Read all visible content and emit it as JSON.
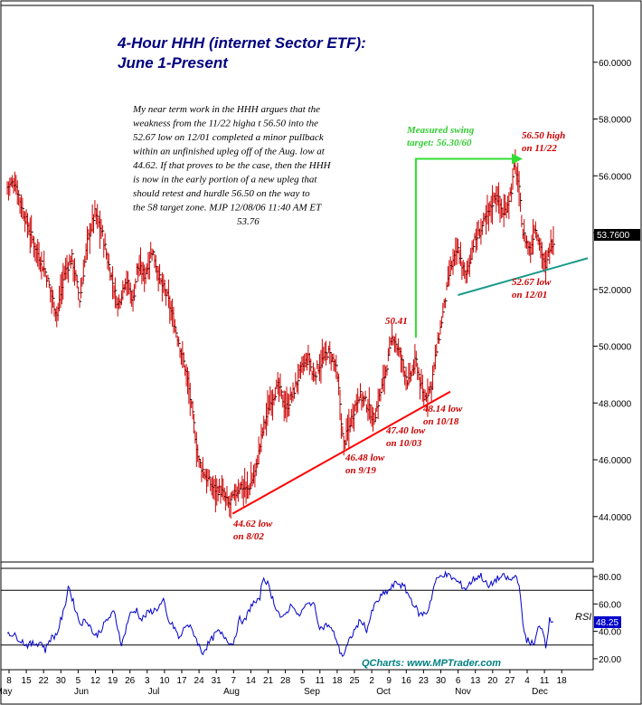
{
  "chart_data": [
    {
      "type": "ohlc",
      "title_line1": "4-Hour HHH (internet Sector ETF):",
      "title_line2": "June 1-Present",
      "ylim": [
        42.4,
        62.0
      ],
      "y_ticks": [
        "44.0000",
        "46.0000",
        "48.0000",
        "50.0000",
        "52.0000",
        "54.0000",
        "56.0000",
        "58.0000",
        "60.0000"
      ],
      "last_price_label": "53.7600",
      "note_lines": [
        "My near term work in the HHH argues that the",
        "weakness from the 11/22 higha t 56.50 into the",
        "52.67 low on 12/01 completed a minor pullback",
        "within an unfinished upleg off of the Aug. low at",
        "44.62. If that proves to be the case, then the HHH",
        "is now in the early portion of a new upleg that",
        "should retest and hurdle 56.50 on the way to",
        "the 58 target zone.  MJP  12/08/06  11:40 AM ET"
      ],
      "note_tail": "53.76",
      "annotations": [
        {
          "lines": [
            "Measured swing",
            "target: 56.30/60"
          ],
          "color": "#33cc33"
        },
        {
          "lines": [
            "56.50 high",
            "on 11/22"
          ],
          "color": "#cc0000"
        },
        {
          "lines": [
            "50.41"
          ],
          "color": "#cc0000"
        },
        {
          "lines": [
            "52.67 low",
            "on 12/01"
          ],
          "color": "#cc0000"
        },
        {
          "lines": [
            "48.14 low",
            "on 10/18"
          ],
          "color": "#cc0000"
        },
        {
          "lines": [
            "47.40 low",
            "on 10/03"
          ],
          "color": "#cc0000"
        },
        {
          "lines": [
            "46.48 low",
            "on 9/19"
          ],
          "color": "#cc0000"
        },
        {
          "lines": [
            "44.62 low",
            "on 8/02"
          ],
          "color": "#cc0000"
        }
      ],
      "key_points": [
        {
          "t": 0,
          "p": 55.6
        },
        {
          "t": 2,
          "p": 55.8
        },
        {
          "t": 4,
          "p": 54.8
        },
        {
          "t": 7,
          "p": 53.6
        },
        {
          "t": 10,
          "p": 52.6
        },
        {
          "t": 13,
          "p": 51.1
        },
        {
          "t": 15,
          "p": 52.6
        },
        {
          "t": 17,
          "p": 53.1
        },
        {
          "t": 19,
          "p": 51.6
        },
        {
          "t": 21,
          "p": 53.7
        },
        {
          "t": 23,
          "p": 54.7
        },
        {
          "t": 25,
          "p": 53.9
        },
        {
          "t": 26,
          "p": 53.2
        },
        {
          "t": 29,
          "p": 51.4
        },
        {
          "t": 31,
          "p": 52.4
        },
        {
          "t": 33,
          "p": 51.6
        },
        {
          "t": 34,
          "p": 52.8
        },
        {
          "t": 36,
          "p": 52.5
        },
        {
          "t": 38,
          "p": 53.4
        },
        {
          "t": 40,
          "p": 52.3
        },
        {
          "t": 42,
          "p": 51.7
        },
        {
          "t": 45,
          "p": 50.1
        },
        {
          "t": 47,
          "p": 49.0
        },
        {
          "t": 49,
          "p": 47.1
        },
        {
          "t": 50,
          "p": 46.0
        },
        {
          "t": 52,
          "p": 45.4
        },
        {
          "t": 54,
          "p": 45.0
        },
        {
          "t": 56,
          "p": 44.9
        },
        {
          "t": 58,
          "p": 44.4
        },
        {
          "t": 59,
          "p": 44.62
        },
        {
          "t": 61,
          "p": 45.1
        },
        {
          "t": 63,
          "p": 44.9
        },
        {
          "t": 65,
          "p": 45.6
        },
        {
          "t": 67,
          "p": 47.1
        },
        {
          "t": 69,
          "p": 48.1
        },
        {
          "t": 71,
          "p": 48.6
        },
        {
          "t": 73,
          "p": 47.8
        },
        {
          "t": 75,
          "p": 48.4
        },
        {
          "t": 77,
          "p": 49.2
        },
        {
          "t": 79,
          "p": 49.6
        },
        {
          "t": 80,
          "p": 48.9
        },
        {
          "t": 82,
          "p": 49.4
        },
        {
          "t": 84,
          "p": 49.8
        },
        {
          "t": 86,
          "p": 49.3
        },
        {
          "t": 87,
          "p": 48.2
        },
        {
          "t": 88,
          "p": 46.48
        },
        {
          "t": 90,
          "p": 47.4
        },
        {
          "t": 92,
          "p": 48.3
        },
        {
          "t": 94,
          "p": 48.0
        },
        {
          "t": 96,
          "p": 47.4
        },
        {
          "t": 98,
          "p": 48.5
        },
        {
          "t": 100,
          "p": 49.7
        },
        {
          "t": 101,
          "p": 50.41
        },
        {
          "t": 103,
          "p": 49.6
        },
        {
          "t": 105,
          "p": 48.7
        },
        {
          "t": 107,
          "p": 49.5
        },
        {
          "t": 109,
          "p": 48.14
        },
        {
          "t": 111,
          "p": 48.6
        },
        {
          "t": 112,
          "p": 49.5
        },
        {
          "t": 114,
          "p": 51.1
        },
        {
          "t": 116,
          "p": 52.7
        },
        {
          "t": 118,
          "p": 53.4
        },
        {
          "t": 120,
          "p": 52.4
        },
        {
          "t": 122,
          "p": 53.6
        },
        {
          "t": 124,
          "p": 54.1
        },
        {
          "t": 126,
          "p": 54.7
        },
        {
          "t": 128,
          "p": 55.4
        },
        {
          "t": 130,
          "p": 54.6
        },
        {
          "t": 132,
          "p": 55.5
        },
        {
          "t": 133,
          "p": 56.5
        },
        {
          "t": 134,
          "p": 55.5
        },
        {
          "t": 135,
          "p": 54.0
        },
        {
          "t": 137,
          "p": 53.3
        },
        {
          "t": 138,
          "p": 54.2
        },
        {
          "t": 139,
          "p": 53.9
        },
        {
          "t": 141,
          "p": 52.67
        },
        {
          "t": 142,
          "p": 53.5
        },
        {
          "t": 143,
          "p": 53.76
        }
      ],
      "trendlines": [
        {
          "from": {
            "t": 59,
            "p": 44.1
          },
          "to": {
            "t": 116,
            "p": 48.4
          },
          "color": "#ff0000"
        },
        {
          "from": {
            "t": 118,
            "p": 51.8
          },
          "to": {
            "t": 152,
            "p": 53.1
          },
          "color": "#1a9a8a"
        }
      ],
      "target_arrow": {
        "start": {
          "t": 107,
          "p": 50.3
        },
        "corner_p": 56.6,
        "end_t": 134,
        "color": "#33dd33"
      }
    },
    {
      "type": "line",
      "series_name": "RSI",
      "ylim": [
        12,
        86
      ],
      "y_ticks": [
        "20.00",
        "40.00",
        "60.00",
        "80.00"
      ],
      "ref_lines": [
        30,
        70
      ],
      "last_value_label": "48.25",
      "key_points": [
        {
          "t": 0,
          "v": 40
        },
        {
          "t": 3,
          "v": 35
        },
        {
          "t": 5,
          "v": 30
        },
        {
          "t": 7,
          "v": 31
        },
        {
          "t": 9,
          "v": 32
        },
        {
          "t": 10,
          "v": 26
        },
        {
          "t": 11,
          "v": 34
        },
        {
          "t": 13,
          "v": 38
        },
        {
          "t": 14,
          "v": 48
        },
        {
          "t": 15,
          "v": 56
        },
        {
          "t": 16,
          "v": 74
        },
        {
          "t": 17,
          "v": 64
        },
        {
          "t": 19,
          "v": 46
        },
        {
          "t": 21,
          "v": 48
        },
        {
          "t": 23,
          "v": 36
        },
        {
          "t": 25,
          "v": 43
        },
        {
          "t": 26,
          "v": 48
        },
        {
          "t": 28,
          "v": 54
        },
        {
          "t": 30,
          "v": 30
        },
        {
          "t": 32,
          "v": 52
        },
        {
          "t": 34,
          "v": 56
        },
        {
          "t": 35,
          "v": 48
        },
        {
          "t": 37,
          "v": 54
        },
        {
          "t": 39,
          "v": 56
        },
        {
          "t": 41,
          "v": 62
        },
        {
          "t": 42,
          "v": 48
        },
        {
          "t": 44,
          "v": 42
        },
        {
          "t": 45,
          "v": 34
        },
        {
          "t": 47,
          "v": 46
        },
        {
          "t": 49,
          "v": 38
        },
        {
          "t": 51,
          "v": 24
        },
        {
          "t": 53,
          "v": 32
        },
        {
          "t": 55,
          "v": 40
        },
        {
          "t": 57,
          "v": 36
        },
        {
          "t": 59,
          "v": 30
        },
        {
          "t": 61,
          "v": 50
        },
        {
          "t": 62,
          "v": 46
        },
        {
          "t": 64,
          "v": 60
        },
        {
          "t": 66,
          "v": 62
        },
        {
          "t": 67,
          "v": 80
        },
        {
          "t": 68,
          "v": 76
        },
        {
          "t": 70,
          "v": 60
        },
        {
          "t": 72,
          "v": 48
        },
        {
          "t": 74,
          "v": 58
        },
        {
          "t": 75,
          "v": 60
        },
        {
          "t": 76,
          "v": 50
        },
        {
          "t": 78,
          "v": 58
        },
        {
          "t": 80,
          "v": 62
        },
        {
          "t": 82,
          "v": 42
        },
        {
          "t": 84,
          "v": 45
        },
        {
          "t": 86,
          "v": 36
        },
        {
          "t": 87,
          "v": 26
        },
        {
          "t": 88,
          "v": 22
        },
        {
          "t": 90,
          "v": 36
        },
        {
          "t": 92,
          "v": 46
        },
        {
          "t": 93,
          "v": 48
        },
        {
          "t": 94,
          "v": 40
        },
        {
          "t": 96,
          "v": 58
        },
        {
          "t": 98,
          "v": 66
        },
        {
          "t": 100,
          "v": 70
        },
        {
          "t": 102,
          "v": 76
        },
        {
          "t": 104,
          "v": 72
        },
        {
          "t": 106,
          "v": 62
        },
        {
          "t": 108,
          "v": 52
        },
        {
          "t": 110,
          "v": 54
        },
        {
          "t": 111,
          "v": 64
        },
        {
          "t": 112,
          "v": 76
        },
        {
          "t": 114,
          "v": 82
        },
        {
          "t": 116,
          "v": 80
        },
        {
          "t": 118,
          "v": 76
        },
        {
          "t": 120,
          "v": 71
        },
        {
          "t": 122,
          "v": 78
        },
        {
          "t": 124,
          "v": 81
        },
        {
          "t": 126,
          "v": 72
        },
        {
          "t": 128,
          "v": 78
        },
        {
          "t": 130,
          "v": 80
        },
        {
          "t": 132,
          "v": 77
        },
        {
          "t": 133,
          "v": 81
        },
        {
          "t": 134,
          "v": 76
        },
        {
          "t": 135,
          "v": 44
        },
        {
          "t": 136,
          "v": 34
        },
        {
          "t": 138,
          "v": 30
        },
        {
          "t": 139,
          "v": 42
        },
        {
          "t": 140,
          "v": 44
        },
        {
          "t": 141,
          "v": 30
        },
        {
          "t": 142,
          "v": 48
        },
        {
          "t": 143,
          "v": 48.25
        }
      ],
      "watermark": "QCharts: www.MPTrader.com"
    }
  ],
  "x_axis": {
    "day_ticks": [
      "8",
      "15",
      "22",
      "30",
      "5",
      "12",
      "19",
      "26",
      "3",
      "10",
      "17",
      "24",
      "31",
      "7",
      "14",
      "21",
      "28",
      "5",
      "11",
      "18",
      "25",
      "2",
      "9",
      "16",
      "23",
      "30",
      "6",
      "13",
      "20",
      "27",
      "4",
      "11",
      "18"
    ],
    "months": [
      "May",
      "Jun",
      "Jul",
      "Aug",
      "Sep",
      "Oct",
      "Nov",
      "Dec"
    ]
  }
}
